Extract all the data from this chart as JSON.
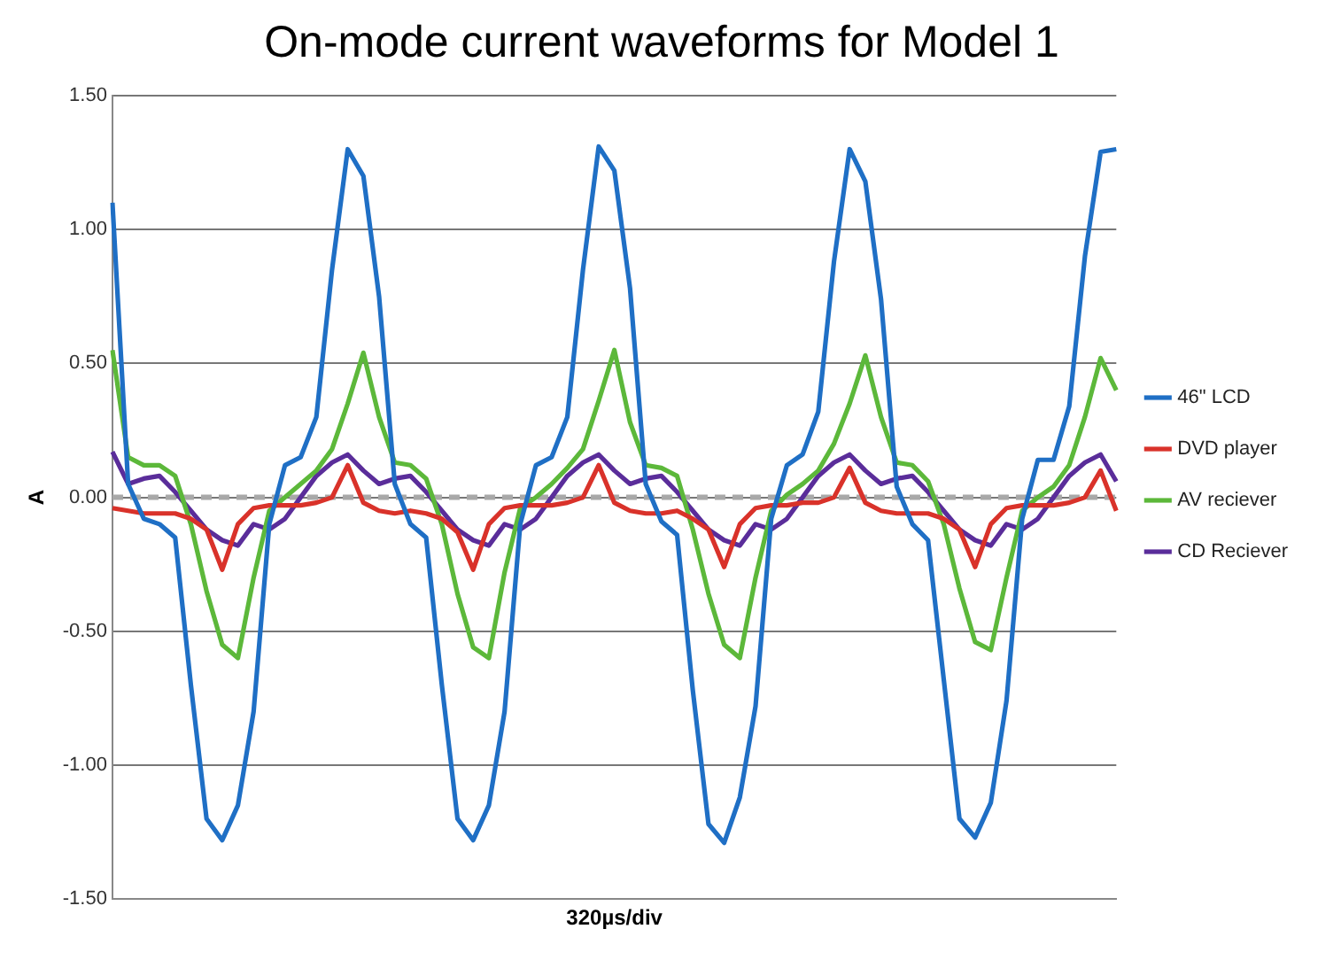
{
  "chart_data": {
    "type": "line",
    "title": "On-mode current waveforms for Model 1",
    "xlabel": "320µs/div",
    "ylabel": "A",
    "categories": [
      null,
      null,
      null,
      null,
      null,
      null,
      null,
      null,
      null,
      null,
      null,
      null,
      null,
      null,
      null,
      null,
      null,
      null,
      null,
      null,
      null,
      null,
      null,
      null,
      null,
      null,
      null,
      null,
      null,
      null,
      null,
      null,
      null,
      null,
      null,
      null,
      null,
      null,
      null,
      null,
      null,
      null,
      null,
      null,
      null,
      null,
      null,
      null,
      null,
      null,
      null,
      null,
      null,
      null,
      null,
      null,
      null,
      null,
      null,
      null,
      null,
      null,
      null,
      null,
      null
    ],
    "series": [
      {
        "name": "46\" LCD",
        "color": "#1f6fc5",
        "values": [
          1.1,
          0.05,
          -0.08,
          -0.1,
          -0.15,
          -0.7,
          -1.2,
          -1.28,
          -1.15,
          -0.8,
          -0.1,
          0.12,
          0.15,
          0.3,
          0.85,
          1.3,
          1.2,
          0.75,
          0.05,
          -0.1,
          -0.15,
          -0.7,
          -1.2,
          -1.28,
          -1.15,
          -0.8,
          -0.1,
          0.12,
          0.15,
          0.3,
          0.85,
          1.31,
          1.22,
          0.78,
          0.05,
          -0.09,
          -0.14,
          -0.72,
          -1.22,
          -1.29,
          -1.12,
          -0.78,
          -0.08,
          0.12,
          0.16,
          0.32,
          0.88,
          1.3,
          1.18,
          0.74,
          0.04,
          -0.1,
          -0.16,
          -0.68,
          -1.2,
          -1.27,
          -1.14,
          -0.76,
          -0.08,
          0.14,
          0.14,
          0.34,
          0.9,
          1.29,
          1.3
        ]
      },
      {
        "name": "DVD player",
        "color": "#d9322a",
        "values": [
          -0.04,
          -0.05,
          -0.06,
          -0.06,
          -0.06,
          -0.08,
          -0.12,
          -0.27,
          -0.1,
          -0.04,
          -0.03,
          -0.03,
          -0.03,
          -0.02,
          0.0,
          0.12,
          -0.02,
          -0.05,
          -0.06,
          -0.05,
          -0.06,
          -0.08,
          -0.13,
          -0.27,
          -0.1,
          -0.04,
          -0.03,
          -0.03,
          -0.03,
          -0.02,
          0.0,
          0.12,
          -0.02,
          -0.05,
          -0.06,
          -0.06,
          -0.05,
          -0.08,
          -0.12,
          -0.26,
          -0.1,
          -0.04,
          -0.03,
          -0.03,
          -0.02,
          -0.02,
          0.0,
          0.11,
          -0.02,
          -0.05,
          -0.06,
          -0.06,
          -0.06,
          -0.08,
          -0.12,
          -0.26,
          -0.1,
          -0.04,
          -0.03,
          -0.03,
          -0.03,
          -0.02,
          0.0,
          0.1,
          -0.05
        ]
      },
      {
        "name": "AV reciever",
        "color": "#5cb83a",
        "values": [
          0.55,
          0.15,
          0.12,
          0.12,
          0.08,
          -0.1,
          -0.35,
          -0.55,
          -0.6,
          -0.3,
          -0.05,
          0.0,
          0.05,
          0.1,
          0.18,
          0.35,
          0.54,
          0.3,
          0.13,
          0.12,
          0.07,
          -0.1,
          -0.36,
          -0.56,
          -0.6,
          -0.28,
          -0.04,
          0.0,
          0.05,
          0.11,
          0.18,
          0.36,
          0.55,
          0.28,
          0.12,
          0.11,
          0.08,
          -0.12,
          -0.36,
          -0.55,
          -0.6,
          -0.3,
          -0.05,
          0.01,
          0.05,
          0.1,
          0.2,
          0.35,
          0.53,
          0.3,
          0.13,
          0.12,
          0.06,
          -0.1,
          -0.34,
          -0.54,
          -0.57,
          -0.3,
          -0.05,
          0.0,
          0.04,
          0.12,
          0.3,
          0.52,
          0.4
        ]
      },
      {
        "name": "CD Reciever",
        "color": "#5a2d9a",
        "values": [
          0.17,
          0.05,
          0.07,
          0.08,
          0.02,
          -0.05,
          -0.12,
          -0.16,
          -0.18,
          -0.1,
          -0.12,
          -0.08,
          0.0,
          0.08,
          0.13,
          0.16,
          0.1,
          0.05,
          0.07,
          0.08,
          0.02,
          -0.05,
          -0.12,
          -0.16,
          -0.18,
          -0.1,
          -0.12,
          -0.08,
          0.0,
          0.08,
          0.13,
          0.16,
          0.1,
          0.05,
          0.07,
          0.08,
          0.02,
          -0.05,
          -0.12,
          -0.16,
          -0.18,
          -0.1,
          -0.12,
          -0.08,
          0.0,
          0.08,
          0.13,
          0.16,
          0.1,
          0.05,
          0.07,
          0.08,
          0.02,
          -0.05,
          -0.12,
          -0.16,
          -0.18,
          -0.1,
          -0.12,
          -0.08,
          0.0,
          0.08,
          0.13,
          0.16,
          0.06
        ]
      }
    ],
    "ylim": [
      -1.5,
      1.5
    ],
    "yticks": [
      {
        "value": -1.5,
        "label": "-1.50"
      },
      {
        "value": -1,
        "label": "-1.00"
      },
      {
        "value": -0.5,
        "label": "-0.50"
      },
      {
        "value": 0,
        "label": "0.00"
      },
      {
        "value": 0.5,
        "label": "0.50"
      },
      {
        "value": 1,
        "label": "1.00"
      },
      {
        "value": 1.5,
        "label": "1.50"
      }
    ],
    "ref_lines": [
      {
        "axis": "y",
        "value": 0,
        "color": "#a8a8a8",
        "line_style": "dashed"
      }
    ],
    "grid": "y",
    "legend": "right",
    "marker": "none",
    "line_style": "solid"
  }
}
